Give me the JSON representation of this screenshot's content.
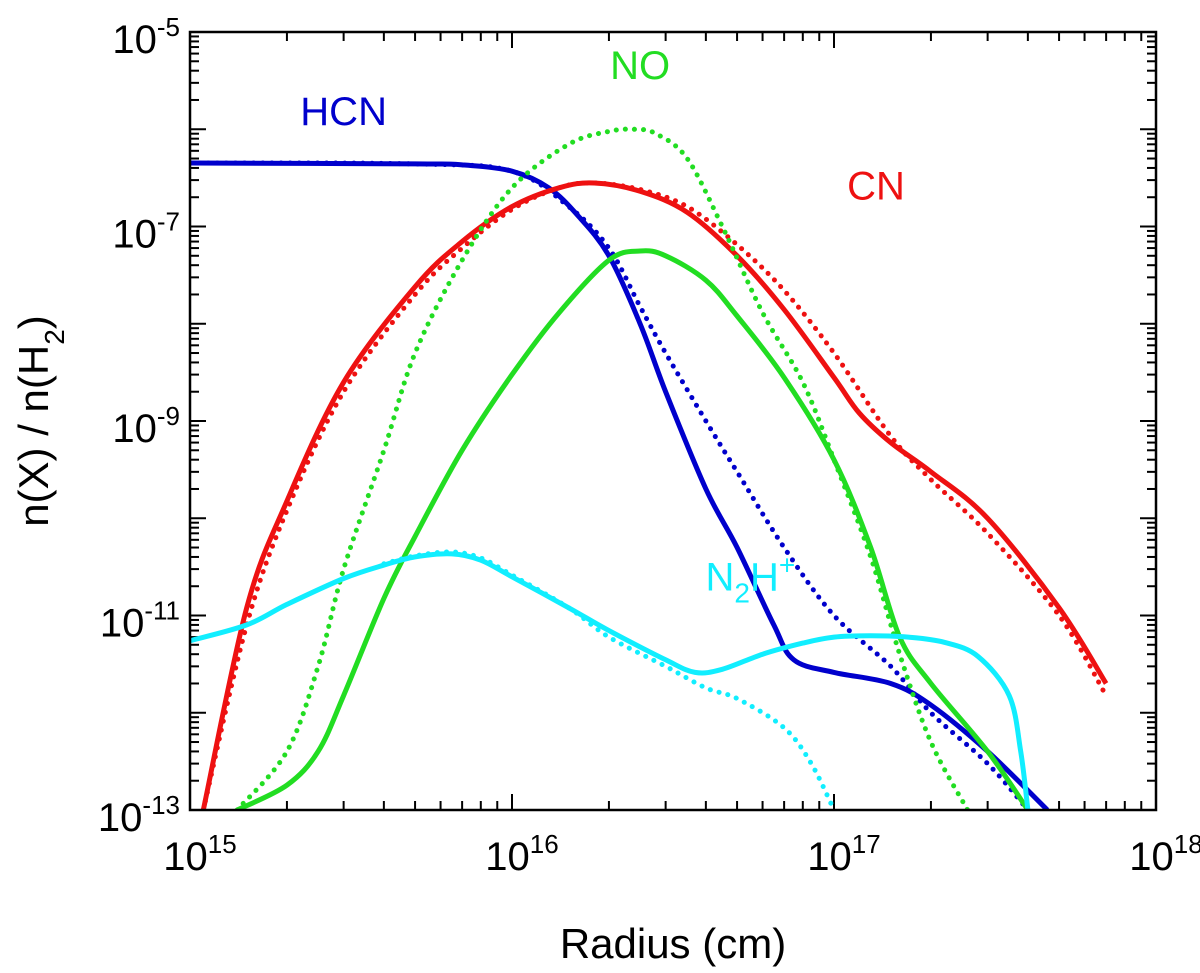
{
  "chart_data": {
    "type": "line",
    "xlabel": "Radius (cm)",
    "ylabel": "n(X) / n(H2)",
    "xscale": "log",
    "yscale": "log",
    "xlim": [
      1000000000000000.0,
      1e+18
    ],
    "ylim": [
      1e-13,
      1e-05
    ],
    "x_ticks": [
      {
        "value": 1000000000000000.0,
        "base": "10",
        "exp": "15"
      },
      {
        "value": 1e+16,
        "base": "10",
        "exp": "16"
      },
      {
        "value": 1e+17,
        "base": "10",
        "exp": "17"
      },
      {
        "value": 1e+18,
        "base": "10",
        "exp": "18"
      }
    ],
    "y_ticks": [
      {
        "value": 1e-05,
        "base": "10",
        "exp": "-5"
      },
      {
        "value": 1e-07,
        "base": "10",
        "exp": "-7"
      },
      {
        "value": 1e-09,
        "base": "10",
        "exp": "-9"
      },
      {
        "value": 1e-11,
        "base": "10",
        "exp": "-11"
      },
      {
        "value": 1e-13,
        "base": "10",
        "exp": "-13"
      }
    ],
    "grid": false,
    "series": [
      {
        "name": "HCN",
        "color": "#0000cc",
        "style": "solid",
        "x": [
          1000000000000000.0,
          5000000000000000.0,
          7000000000000000.0,
          1e+16,
          1.3e+16,
          1.6e+16,
          2e+16,
          2.5e+16,
          3e+16,
          4e+16,
          5e+16,
          6.5e+16,
          7.5e+16,
          1e+17,
          1.5e+17,
          2e+17,
          3e+17,
          4.6e+17
        ],
        "y": [
          4.5e-07,
          4.4e-07,
          4.3e-07,
          3.7e-07,
          2.5e-07,
          1.3e-07,
          5e-08,
          1e-08,
          2e-09,
          2e-10,
          5e-11,
          8e-12,
          3.5e-12,
          2.6e-12,
          2e-12,
          1.2e-12,
          4e-13,
          1e-13
        ]
      },
      {
        "name": "HCN",
        "color": "#0000cc",
        "style": "dotted",
        "x": [
          1000000000000000.0,
          5000000000000000.0,
          1e+16,
          1.5e+16,
          2e+16,
          2.5e+16,
          3e+16,
          4e+16,
          5e+16,
          7e+16,
          1e+17,
          1.5e+17,
          2e+17,
          3e+17,
          4e+17
        ],
        "y": [
          4.5e-07,
          4.4e-07,
          3.7e-07,
          1.6e-07,
          6e-08,
          1.5e-08,
          5e-09,
          1e-09,
          3e-10,
          5e-11,
          1e-11,
          3e-12,
          1e-12,
          3e-13,
          1e-13
        ]
      },
      {
        "name": "CN",
        "color": "#ee1111",
        "style": "solid",
        "x": [
          1100000000000000.0,
          1500000000000000.0,
          2000000000000000.0,
          3000000000000000.0,
          5000000000000000.0,
          7000000000000000.0,
          1e+16,
          1.4e+16,
          1.8e+16,
          2.5e+16,
          3.5e+16,
          5e+16,
          7e+16,
          1e+17,
          1.2e+17,
          1.5e+17,
          2e+17,
          3e+17,
          5e+17,
          7e+17
        ],
        "y": [
          1e-13,
          1.2e-11,
          1.5e-10,
          2.5e-09,
          2.4e-08,
          7e-08,
          1.6e-07,
          2.5e-07,
          2.8e-07,
          2.3e-07,
          1.4e-07,
          5e-08,
          1.4e-08,
          2.8e-09,
          1.2e-09,
          6e-10,
          3e-10,
          1e-10,
          1.2e-11,
          2e-12
        ]
      },
      {
        "name": "CN",
        "color": "#ee1111",
        "style": "dotted",
        "x": [
          1100000000000000.0,
          1500000000000000.0,
          2000000000000000.0,
          3000000000000000.0,
          5000000000000000.0,
          7000000000000000.0,
          1e+16,
          1.4e+16,
          1.8e+16,
          2.5e+16,
          3.5e+16,
          5e+16,
          7e+16,
          1e+17,
          1.5e+17,
          2e+17,
          3e+17,
          5e+17,
          7e+17
        ],
        "y": [
          1e-13,
          8e-12,
          1.2e-10,
          2e-09,
          2e-08,
          6e-08,
          1.5e-07,
          2.5e-07,
          2.8e-07,
          2.4e-07,
          1.6e-07,
          6.5e-08,
          2.2e-08,
          5e-09,
          7e-10,
          2.5e-10,
          7e-11,
          1e-11,
          1.5e-12
        ]
      },
      {
        "name": "NO",
        "color": "#22dd22",
        "style": "solid",
        "x": [
          1400000000000000.0,
          2000000000000000.0,
          2500000000000000.0,
          3000000000000000.0,
          4000000000000000.0,
          5000000000000000.0,
          7000000000000000.0,
          1e+16,
          1.4e+16,
          2e+16,
          2.5e+16,
          3e+16,
          4e+16,
          5e+16,
          7e+16,
          1e+17,
          1.3e+17,
          1.6e+17,
          2e+17,
          3e+17,
          4e+17
        ],
        "y": [
          1e-13,
          1.8e-13,
          4e-13,
          1.5e-12,
          1.5e-11,
          6.5e-11,
          5e-10,
          3e-09,
          1.3e-08,
          4.5e-08,
          5.6e-08,
          5e-08,
          2.8e-08,
          1.2e-08,
          2.8e-09,
          4e-10,
          5e-11,
          6e-12,
          2e-12,
          4e-13,
          1e-13
        ]
      },
      {
        "name": "NO",
        "color": "#22dd22",
        "style": "dotted",
        "x": [
          1400000000000000.0,
          2000000000000000.0,
          2500000000000000.0,
          3000000000000000.0,
          4000000000000000.0,
          5000000000000000.0,
          7000000000000000.0,
          1e+16,
          1.5e+16,
          2e+16,
          2.4e+16,
          2.8e+16,
          3.5e+16,
          4.5e+16,
          6e+16,
          8e+16,
          1e+17,
          1.3e+17,
          1.6e+17,
          2e+17,
          2.6e+17
        ],
        "y": [
          1e-13,
          4e-13,
          3e-12,
          3e-11,
          5e-10,
          5e-09,
          4.5e-08,
          2.5e-07,
          7e-07,
          9.5e-07,
          1e-06,
          9e-07,
          5e-07,
          1e-07,
          1.3e-08,
          2.5e-09,
          4e-10,
          4e-11,
          4e-12,
          5e-13,
          1e-13
        ]
      },
      {
        "name": "N2H+",
        "color": "#11eeff",
        "style": "solid",
        "x": [
          1000000000000000.0,
          1500000000000000.0,
          2000000000000000.0,
          3000000000000000.0,
          4000000000000000.0,
          5000000000000000.0,
          6500000000000000.0,
          8000000000000000.0,
          1e+16,
          1.5e+16,
          2e+16,
          3e+16,
          3.7e+16,
          4.5e+16,
          6e+16,
          8e+16,
          1e+17,
          1.3e+17,
          1.7e+17,
          2.2e+17,
          2.8e+17,
          3.5e+17,
          3.8e+17,
          4e+17
        ],
        "y": [
          5.5e-12,
          8e-12,
          1.3e-11,
          2.4e-11,
          3.3e-11,
          4e-11,
          4.3e-11,
          3.7e-11,
          2.5e-11,
          1.2e-11,
          7e-12,
          3.5e-12,
          2.6e-12,
          2.8e-12,
          4e-12,
          5.2e-12,
          6e-12,
          6.2e-12,
          6e-12,
          5.3e-12,
          3.8e-12,
          1.5e-12,
          4e-13,
          1e-13
        ]
      },
      {
        "name": "N2H+",
        "color": "#11eeff",
        "style": "dotted",
        "x": [
          4000000000000000.0,
          5000000000000000.0,
          6500000000000000.0,
          8000000000000000.0,
          1e+16,
          1.5e+16,
          2e+16,
          3e+16,
          4e+16,
          5e+16,
          7e+16,
          8.5e+16,
          1e+17
        ],
        "y": [
          3.4e-11,
          4.1e-11,
          4.5e-11,
          3.9e-11,
          2.6e-11,
          1.2e-11,
          6e-12,
          3e-12,
          1.8e-12,
          1.4e-12,
          7e-13,
          3e-13,
          1e-13
        ]
      }
    ],
    "annotations": [
      {
        "text": "HCN",
        "color": "#0000cc",
        "x": 3000000000000000.0,
        "y": 1.1e-06
      },
      {
        "text": "NO",
        "color": "#22dd22",
        "x": 2.5e+16,
        "y": 3.3e-06
      },
      {
        "text": "CN",
        "color": "#ee1111",
        "x": 1.35e+17,
        "y": 1.9e-07
      },
      {
        "text": "N",
        "sub": "2",
        "tail": "H",
        "sup": "+",
        "color": "#11eeff",
        "x": 5.5e+16,
        "y": 1.8e-11
      }
    ]
  }
}
